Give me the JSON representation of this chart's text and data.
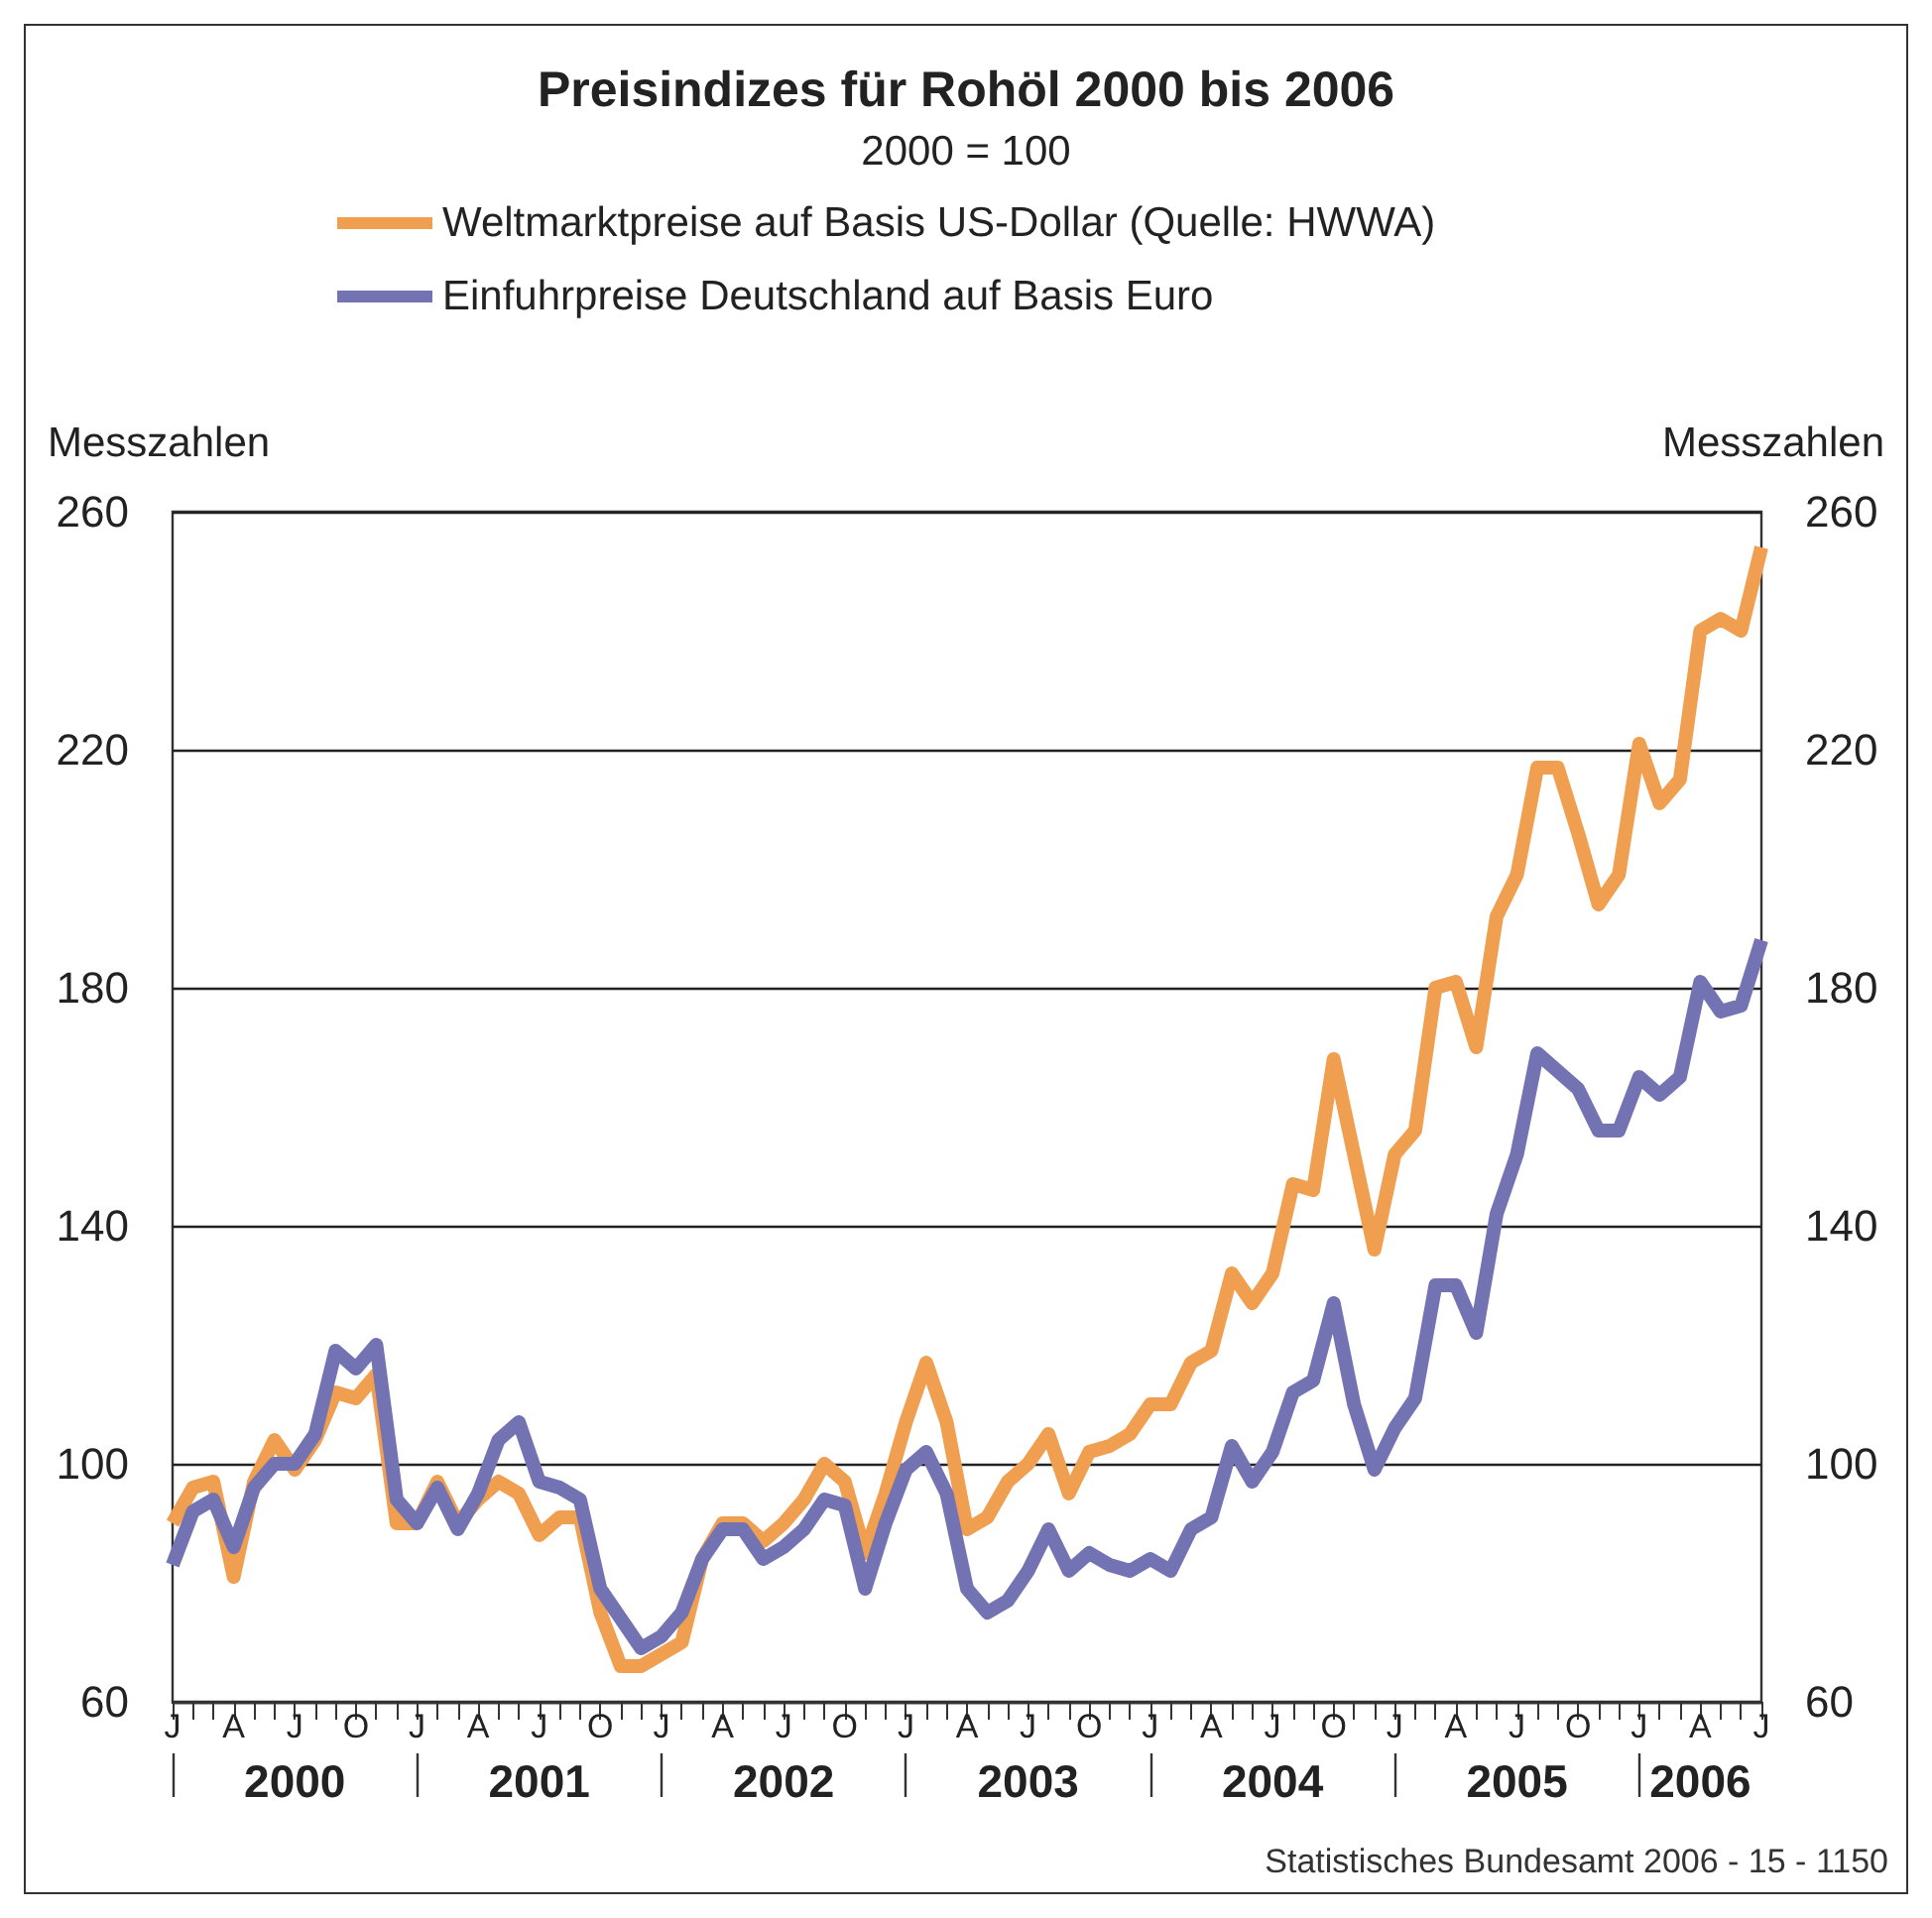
{
  "chart_data": {
    "type": "line",
    "title": "Preisindizes für Rohöl 2000 bis 2006",
    "subtitle": "2000 = 100",
    "ylabel": "Messzahlen",
    "y2label": "Messzahlen",
    "categories": [
      "J",
      null,
      null,
      "A",
      null,
      null,
      "J",
      null,
      null,
      "O",
      null,
      null,
      "J",
      null,
      null,
      "A",
      null,
      null,
      "J",
      null,
      null,
      "O",
      null,
      null,
      "J",
      null,
      null,
      "A",
      null,
      null,
      "J",
      null,
      null,
      "O",
      null,
      null,
      "J",
      null,
      null,
      "A",
      null,
      null,
      "J",
      null,
      null,
      "O",
      null,
      null,
      "J",
      null,
      null,
      "A",
      null,
      null,
      "J",
      null,
      null,
      "O",
      null,
      null,
      "J",
      null,
      null,
      "A",
      null,
      null,
      "J",
      null,
      null,
      "O",
      null,
      null,
      "J",
      null,
      null,
      "A",
      null,
      null,
      "J"
    ],
    "series": [
      {
        "name": "Weltmarktpreise auf Basis US-Dollar (Quelle: HWWA)",
        "color": "#ef9f4f",
        "values": [
          90,
          96,
          97,
          81,
          97,
          104,
          99,
          104,
          112,
          111,
          115,
          90,
          90,
          97,
          90,
          94,
          97,
          95,
          88,
          91,
          91,
          75,
          66,
          66,
          68,
          70,
          84,
          90,
          90,
          87,
          90,
          94,
          100,
          97,
          85,
          95,
          107,
          117,
          107,
          89,
          91,
          97,
          100,
          105,
          95,
          102,
          103,
          105,
          110,
          110,
          117,
          119,
          132,
          127,
          132,
          147,
          146,
          168,
          152,
          136,
          152,
          156,
          180,
          181,
          170,
          192,
          199,
          217,
          217,
          206,
          194,
          199,
          221,
          211,
          215,
          240,
          242,
          240,
          254
        ]
      },
      {
        "name": "Einfuhrpreise Deutschland auf Basis Euro",
        "color": "#7373b3",
        "values": [
          83,
          92,
          94,
          86,
          96,
          100,
          100,
          105,
          119,
          116,
          120,
          94,
          90,
          96,
          89,
          95,
          104,
          107,
          97,
          96,
          94,
          79,
          74,
          69,
          71,
          75,
          84,
          89,
          89,
          84,
          86,
          89,
          94,
          93,
          79,
          90,
          99,
          102,
          95,
          79,
          75,
          77,
          82,
          89,
          82,
          85,
          83,
          82,
          84,
          82,
          89,
          91,
          103,
          97,
          102,
          112,
          114,
          127,
          110,
          99,
          106,
          111,
          130,
          130,
          122,
          142,
          152,
          169,
          166,
          163,
          156,
          156,
          165,
          162,
          165,
          181,
          176,
          177,
          188
        ]
      }
    ],
    "ylim": [
      60,
      260
    ],
    "yticks": [
      60,
      100,
      140,
      180,
      220,
      260
    ],
    "y2lim": [
      60,
      260
    ],
    "y2ticks": [
      60,
      100,
      140,
      180,
      220,
      260
    ],
    "grid": "y",
    "legend": "top",
    "marker": "none",
    "line_style": "solid",
    "annotations": [
      "2000",
      "2001",
      "2002",
      "2003",
      "2004",
      "2005",
      "2006",
      "Statistisches Bundesamt 2006 - 15 - 1150"
    ]
  }
}
